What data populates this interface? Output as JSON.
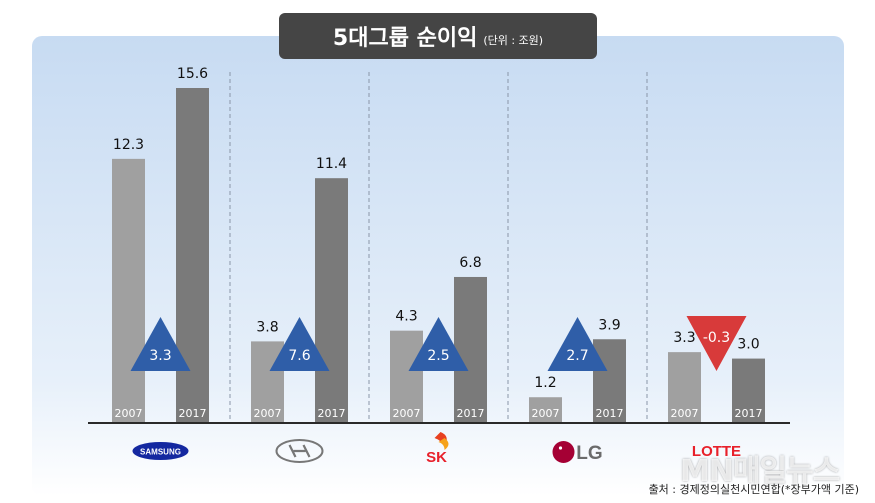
{
  "title": "5대그룹 순이익",
  "unit": "(단위 : 조원)",
  "source": "출처 : 경제정의실천시민연합(*장부가액 기준)",
  "watermark": "MN매일뉴스",
  "colors": {
    "bar_2007": "#a0a0a0",
    "bar_2017": "#7a7a7a",
    "increase": "#2f5ea8",
    "decrease": "#d83a3a",
    "panel_top": "#cfe0f4",
    "panel_bottom": "#ffffff"
  },
  "chart_data": {
    "type": "bar",
    "categories": [
      "SAMSUNG",
      "HYUNDAI",
      "SK",
      "LG",
      "LOTTE"
    ],
    "series": [
      {
        "name": "2007",
        "values": [
          12.3,
          3.8,
          4.3,
          1.2,
          3.3
        ]
      },
      {
        "name": "2017",
        "values": [
          15.6,
          11.4,
          6.8,
          3.9,
          3.0
        ]
      }
    ],
    "change": [
      3.3,
      7.6,
      2.5,
      2.7,
      -0.3
    ],
    "change_labels": [
      "3.3",
      "7.6",
      "2.5",
      "2.7",
      "-0.3"
    ],
    "value_labels_2007": [
      "12.3",
      "3.8",
      "4.3",
      "1.2",
      "3.3"
    ],
    "value_labels_2017": [
      "15.6",
      "11.4",
      "6.8",
      "3.9",
      "3.0"
    ],
    "ylim": [
      0,
      17
    ],
    "grid": false
  },
  "logos": [
    {
      "name": "samsung-logo",
      "text": "SAMSUNG"
    },
    {
      "name": "hyundai-logo",
      "text": ""
    },
    {
      "name": "sk-logo",
      "text": "SK"
    },
    {
      "name": "lg-logo",
      "text": "LG"
    },
    {
      "name": "lotte-logo",
      "text": "LOTTE"
    }
  ]
}
